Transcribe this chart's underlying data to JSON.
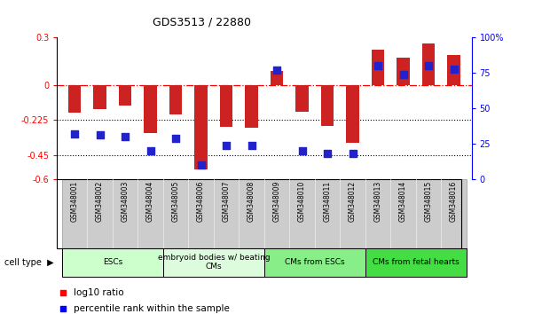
{
  "title": "GDS3513 / 22880",
  "samples": [
    "GSM348001",
    "GSM348002",
    "GSM348003",
    "GSM348004",
    "GSM348005",
    "GSM348006",
    "GSM348007",
    "GSM348008",
    "GSM348009",
    "GSM348010",
    "GSM348011",
    "GSM348012",
    "GSM348013",
    "GSM348014",
    "GSM348015",
    "GSM348016"
  ],
  "log10_ratio": [
    -0.18,
    -0.155,
    -0.13,
    -0.31,
    -0.19,
    -0.54,
    -0.27,
    -0.275,
    0.09,
    -0.17,
    -0.265,
    -0.37,
    0.225,
    0.17,
    0.265,
    0.19
  ],
  "percentile_rank": [
    32,
    31,
    30,
    20,
    29,
    10,
    24,
    24,
    77,
    20,
    18,
    18,
    80,
    74,
    80,
    78
  ],
  "cell_type_groups": [
    {
      "label": "ESCs",
      "start": 0,
      "end": 4,
      "color": "#ccffcc"
    },
    {
      "label": "embryoid bodies w/ beating\nCMs",
      "start": 4,
      "end": 8,
      "color": "#ddfcdd"
    },
    {
      "label": "CMs from ESCs",
      "start": 8,
      "end": 12,
      "color": "#88ee88"
    },
    {
      "label": "CMs from fetal hearts",
      "start": 12,
      "end": 16,
      "color": "#44dd44"
    }
  ],
  "ylim_left": [
    -0.6,
    0.3
  ],
  "ylim_right": [
    0,
    100
  ],
  "yticks_left": [
    -0.6,
    -0.45,
    -0.225,
    0,
    0.3
  ],
  "yticks_left_labels": [
    "-0.6",
    "-0.45",
    "-0.225",
    "0",
    "0.3"
  ],
  "yticks_right": [
    0,
    25,
    50,
    75,
    100
  ],
  "yticks_right_labels": [
    "0",
    "25",
    "50",
    "75",
    "100%"
  ],
  "bar_color": "#cc2222",
  "dot_color": "#2222cc",
  "bar_width": 0.5,
  "dot_size": 30,
  "sample_box_color": "#cccccc",
  "sample_box_edge": "#999999"
}
